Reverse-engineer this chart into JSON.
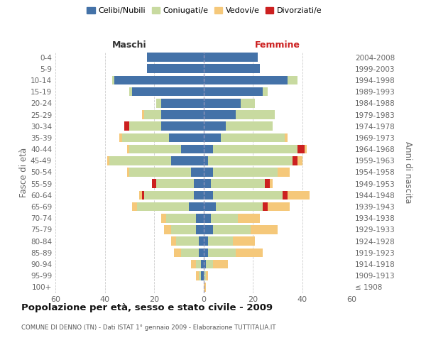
{
  "age_groups": [
    "100+",
    "95-99",
    "90-94",
    "85-89",
    "80-84",
    "75-79",
    "70-74",
    "65-69",
    "60-64",
    "55-59",
    "50-54",
    "45-49",
    "40-44",
    "35-39",
    "30-34",
    "25-29",
    "20-24",
    "15-19",
    "10-14",
    "5-9",
    "0-4"
  ],
  "birth_years": [
    "≤ 1908",
    "1909-1913",
    "1914-1918",
    "1919-1923",
    "1924-1928",
    "1929-1933",
    "1934-1938",
    "1939-1943",
    "1944-1948",
    "1949-1953",
    "1954-1958",
    "1959-1963",
    "1964-1968",
    "1969-1973",
    "1974-1978",
    "1979-1983",
    "1984-1988",
    "1989-1993",
    "1994-1998",
    "1999-2003",
    "2004-2008"
  ],
  "male": {
    "celibe": [
      0,
      1,
      1,
      2,
      2,
      3,
      3,
      6,
      4,
      4,
      5,
      13,
      9,
      14,
      17,
      17,
      17,
      29,
      36,
      23,
      23
    ],
    "coniugato": [
      0,
      1,
      2,
      7,
      9,
      10,
      12,
      21,
      20,
      15,
      25,
      25,
      21,
      19,
      13,
      7,
      2,
      1,
      1,
      0,
      0
    ],
    "vedovo": [
      0,
      1,
      2,
      3,
      2,
      3,
      2,
      2,
      1,
      0,
      1,
      1,
      1,
      1,
      0,
      1,
      0,
      0,
      0,
      0,
      0
    ],
    "divorziato": [
      0,
      0,
      0,
      0,
      0,
      0,
      0,
      0,
      1,
      2,
      0,
      0,
      0,
      0,
      2,
      0,
      0,
      0,
      0,
      0,
      0
    ]
  },
  "female": {
    "nubile": [
      0,
      0,
      1,
      2,
      2,
      4,
      3,
      5,
      4,
      3,
      4,
      2,
      4,
      7,
      9,
      13,
      15,
      24,
      34,
      23,
      22
    ],
    "coniugata": [
      0,
      1,
      3,
      11,
      10,
      15,
      11,
      19,
      28,
      22,
      26,
      34,
      34,
      26,
      19,
      16,
      6,
      2,
      4,
      0,
      0
    ],
    "vedova": [
      1,
      1,
      6,
      11,
      9,
      11,
      9,
      9,
      9,
      1,
      5,
      2,
      1,
      1,
      0,
      0,
      0,
      0,
      0,
      0,
      0
    ],
    "divorziata": [
      0,
      0,
      0,
      0,
      0,
      0,
      0,
      2,
      2,
      2,
      0,
      2,
      3,
      0,
      0,
      0,
      0,
      0,
      0,
      0,
      0
    ]
  },
  "colors": {
    "celibe": "#4472a8",
    "coniugato": "#c8daa0",
    "vedovo": "#f5c87a",
    "divorziato": "#cc2020"
  },
  "xlim": 60,
  "title": "Popolazione per età, sesso e stato civile - 2009",
  "subtitle": "COMUNE DI DENNO (TN) - Dati ISTAT 1° gennaio 2009 - Elaborazione TUTTITALIA.IT",
  "ylabel_left": "Fasce di età",
  "ylabel_right": "Anni di nascita",
  "legend_labels": [
    "Celibi/Nubili",
    "Coniugati/e",
    "Vedovi/e",
    "Divorziati/e"
  ],
  "background_color": "#ffffff",
  "grid_color": "#cccccc",
  "maschi_color": "#333333",
  "femmine_color": "#cc2020"
}
